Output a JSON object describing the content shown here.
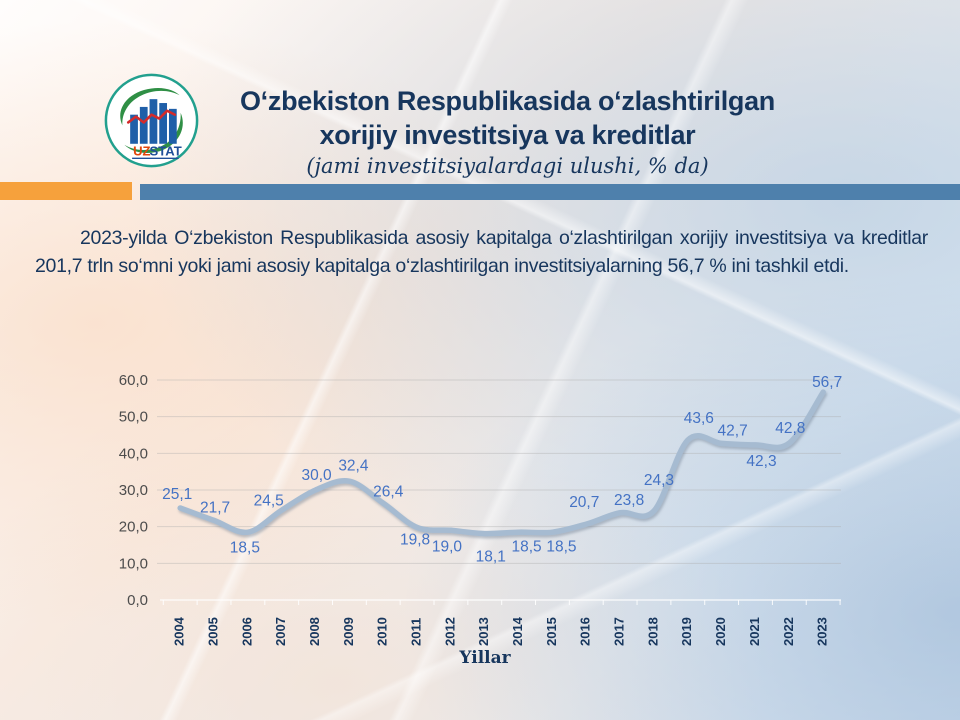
{
  "header": {
    "logo": {
      "uz": "UZ",
      "stat": "STAT"
    },
    "title_line1": "O‘zbekiston Respublikasida o‘zlashtirilgan",
    "title_line2": "xorijiy investitsiya va kreditlar",
    "subtitle": "(jami investitsiyalardagi ulushi, % da)"
  },
  "accent_bars": {
    "orange": "#F6A13C",
    "blue": "#4E80AC"
  },
  "body_paragraph": "2023-yilda O‘zbekiston Respublikasida asosiy kapitalga o‘zlashtirilgan xorijiy investitsiya va kreditlar 201,7 trln so‘mni yoki jami asosiy kapitalga o‘zlashtirilgan investitsiyalarning 56,7 % ini tashkil etdi.",
  "chart_data": {
    "type": "line",
    "title": "",
    "xlabel": "Yillar",
    "ylabel": "",
    "categories": [
      "2004",
      "2005",
      "2006",
      "2007",
      "2008",
      "2009",
      "2010",
      "2011",
      "2012",
      "2013",
      "2014",
      "2015",
      "2016",
      "2017",
      "2018",
      "2019",
      "2020",
      "2021",
      "2022",
      "2023"
    ],
    "values": [
      25.1,
      21.7,
      18.5,
      24.5,
      30.0,
      32.4,
      26.4,
      19.8,
      19.0,
      18.1,
      18.5,
      18.5,
      20.7,
      23.8,
      24.3,
      43.6,
      42.7,
      42.3,
      42.8,
      56.7
    ],
    "value_labels": [
      "25,1",
      "21,7",
      "18,5",
      "24,5",
      "30,0",
      "32,4",
      "26,4",
      "19,8",
      "19,0",
      "18,1",
      "18,5",
      "18,5",
      "20,7",
      "23,8",
      "24,3",
      "43,6",
      "42,7",
      "42,3",
      "42,8",
      "56,7"
    ],
    "ylim": [
      0,
      60
    ],
    "ytick_step": 10,
    "ytick_labels": [
      "0,0",
      "10,0",
      "20,0",
      "30,0",
      "40,0",
      "50,0",
      "60,0"
    ],
    "grid": "horizontal",
    "legend": "none",
    "smooth": true,
    "colors": {
      "line": "#A6BBD1",
      "data_label": "#4472C4",
      "ytick_label": "#4C4C4C",
      "xtick_label": "#17365D"
    }
  }
}
